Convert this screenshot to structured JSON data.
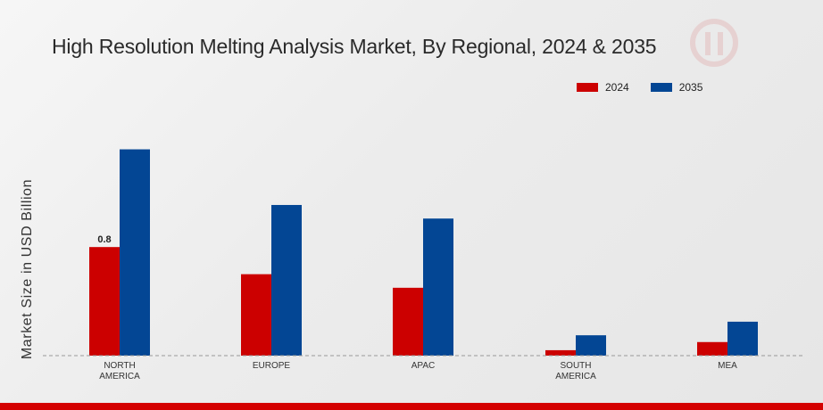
{
  "colors": {
    "series_2024": "#cc0000",
    "series_2035": "#034694",
    "bottom_bar": "#d40000"
  },
  "chart_data": {
    "type": "bar",
    "title": "High Resolution Melting Analysis Market, By Regional, 2024 & 2035",
    "ylabel": "Market Size in USD Billion",
    "xlabel": "",
    "categories": [
      "NORTH AMERICA",
      "EUROPE",
      "APAC",
      "SOUTH AMERICA",
      "MEA"
    ],
    "series": [
      {
        "name": "2024",
        "color": "#cc0000",
        "values": [
          0.8,
          0.6,
          0.5,
          0.04,
          0.1
        ]
      },
      {
        "name": "2035",
        "color": "#034694",
        "values": [
          1.52,
          1.11,
          1.01,
          0.15,
          0.25
        ]
      }
    ],
    "data_labels": [
      {
        "series": "2024",
        "category": "NORTH AMERICA",
        "text": "0.8"
      }
    ],
    "ylim": [
      0,
      2.2
    ],
    "grid": false,
    "legend_position": "top-right"
  }
}
